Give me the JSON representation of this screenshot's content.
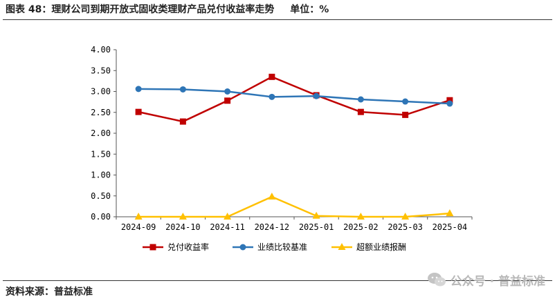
{
  "header": {
    "title": "图表 48：理财公司到期开放式固收类理财产品兑付收益率走势",
    "unit": "单位：%"
  },
  "footer": {
    "source": "资料来源：普益标准"
  },
  "watermark": {
    "text": "公众号 · 普益标准",
    "icon": "wechat-icon"
  },
  "chart_data": {
    "type": "line",
    "title": "",
    "xlabel": "",
    "ylabel": "",
    "categories": [
      "2024-09",
      "2024-10",
      "2024-11",
      "2024-12",
      "2025-01",
      "2025-02",
      "2025-03",
      "2025-04"
    ],
    "ylim": [
      0,
      4
    ],
    "ytick_step": 0.5,
    "yticks": [
      "0.00",
      "0.50",
      "1.00",
      "1.50",
      "2.00",
      "2.50",
      "3.00",
      "3.50",
      "4.00"
    ],
    "grid": false,
    "legend_position": "bottom",
    "series": [
      {
        "name": "兑付收益率",
        "color": "#C00000",
        "marker": "square",
        "values": [
          2.51,
          2.28,
          2.78,
          3.35,
          2.91,
          2.51,
          2.44,
          2.79
        ]
      },
      {
        "name": "业绩比较基准",
        "color": "#2E75B6",
        "marker": "circle",
        "values": [
          3.06,
          3.05,
          3.0,
          2.87,
          2.89,
          2.81,
          2.76,
          2.71
        ]
      },
      {
        "name": "超额业绩报酬",
        "color": "#FFC000",
        "marker": "triangle",
        "values": [
          0.0,
          0.0,
          0.0,
          0.48,
          0.02,
          0.0,
          0.0,
          0.08
        ]
      }
    ]
  }
}
